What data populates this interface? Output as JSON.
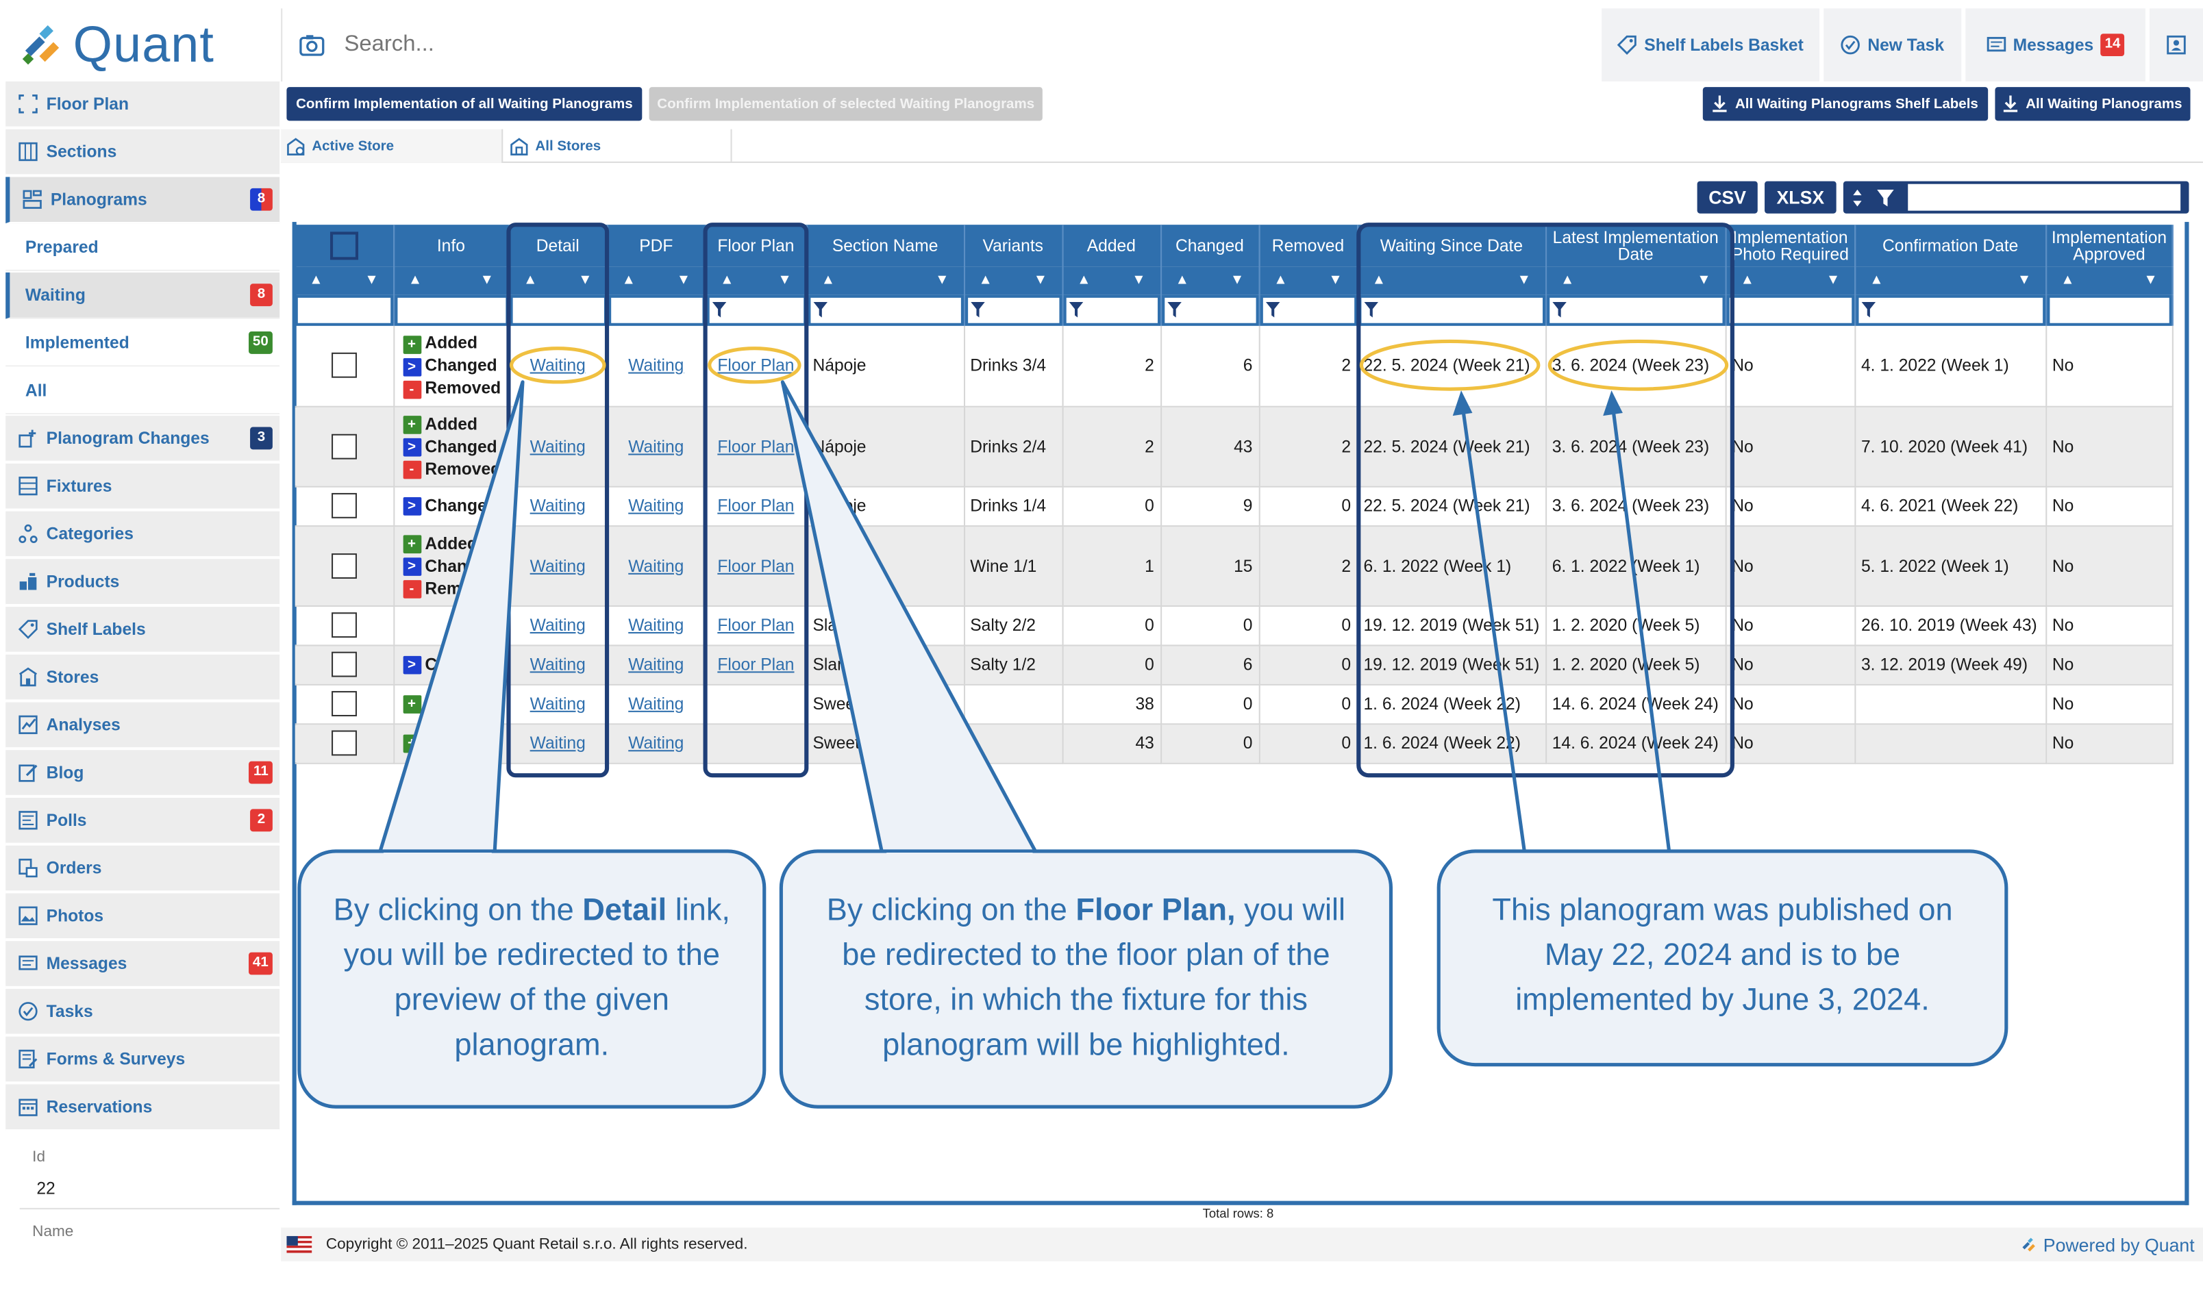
{
  "header": {
    "app_name": "Quant",
    "search_placeholder": "Search...",
    "buttons": [
      {
        "label": "Shelf Labels Basket",
        "icon": "tag-icon"
      },
      {
        "label": "New Task",
        "icon": "check-circle-icon"
      },
      {
        "label": "Messages",
        "icon": "messages-icon",
        "badge": "14"
      }
    ]
  },
  "sidebar": {
    "items": [
      {
        "label": "Floor Plan",
        "icon": "floor-plan-icon"
      },
      {
        "label": "Sections",
        "icon": "sections-icon"
      },
      {
        "label": "Planograms",
        "icon": "planograms-icon",
        "badge": "8"
      },
      {
        "label": "Prepared",
        "sub": true
      },
      {
        "label": "Waiting",
        "sub": true,
        "badge": "8"
      },
      {
        "label": "Implemented",
        "sub": true,
        "badge": "50"
      },
      {
        "label": "All",
        "sub": true
      },
      {
        "label": "Planogram Changes",
        "icon": "planogram-changes-icon",
        "badge": "3"
      },
      {
        "label": "Fixtures",
        "icon": "fixtures-icon"
      },
      {
        "label": "Categories",
        "icon": "categories-icon"
      },
      {
        "label": "Products",
        "icon": "products-icon"
      },
      {
        "label": "Shelf Labels",
        "icon": "tag-icon"
      },
      {
        "label": "Stores",
        "icon": "store-icon"
      },
      {
        "label": "Analyses",
        "icon": "analyses-icon"
      },
      {
        "label": "Blog",
        "icon": "blog-icon",
        "badge": "11"
      },
      {
        "label": "Polls",
        "icon": "polls-icon",
        "badge": "2"
      },
      {
        "label": "Orders",
        "icon": "orders-icon"
      },
      {
        "label": "Photos",
        "icon": "photos-icon"
      },
      {
        "label": "Messages",
        "icon": "messages-icon",
        "badge": "41"
      },
      {
        "label": "Tasks",
        "icon": "tasks-icon"
      },
      {
        "label": "Forms & Surveys",
        "icon": "forms-icon"
      },
      {
        "label": "Reservations",
        "icon": "calendar-icon"
      }
    ],
    "props": [
      {
        "label": "Id",
        "value": "22"
      },
      {
        "label": "Name",
        "value": ""
      }
    ]
  },
  "toolbar": {
    "confirm_all": "Confirm Implementation of all Waiting Planograms",
    "confirm_selected": "Confirm Implementation of selected Waiting Planograms",
    "download_shelf_labels": "All Waiting Planograms Shelf Labels",
    "download_planograms": "All Waiting Planograms"
  },
  "tabs": [
    {
      "label": "Active Store",
      "icon": "active-store-icon"
    },
    {
      "label": "All Stores",
      "icon": "all-stores-icon"
    }
  ],
  "grid_tools": {
    "csv": "CSV",
    "xlsx": "XLSX",
    "filter_value": ""
  },
  "columns": [
    "",
    "Info",
    "Detail",
    "PDF",
    "Floor Plan",
    "Section Name",
    "Variants",
    "Added",
    "Changed",
    "Removed",
    "Waiting Since Date",
    "Latest Implementation Date",
    "Implementation Photo Required",
    "Confirmation Date",
    "Implementation Approved"
  ],
  "rows": [
    {
      "info": [
        "Added",
        "Changed",
        "Removed"
      ],
      "detail": "Waiting",
      "pdf": "Waiting",
      "floor_plan": "Floor Plan",
      "section": "Nápoje",
      "variant": "Drinks 3/4",
      "added": "2",
      "changed": "6",
      "removed": "2",
      "waiting_since": "22. 5. 2024 (Week 21)",
      "latest": "3. 6. 2024 (Week 23)",
      "photo": "No",
      "confirmation": "4. 1. 2022 (Week 1)",
      "approved": "No"
    },
    {
      "info": [
        "Added",
        "Changed",
        "Removed"
      ],
      "detail": "Waiting",
      "pdf": "Waiting",
      "floor_plan": "Floor Plan",
      "section": "Nápoje",
      "variant": "Drinks 2/4",
      "added": "2",
      "changed": "43",
      "removed": "2",
      "waiting_since": "22. 5. 2024 (Week 21)",
      "latest": "3. 6. 2024 (Week 23)",
      "photo": "No",
      "confirmation": "7. 10. 2020 (Week 41)",
      "approved": "No"
    },
    {
      "info": [
        "Changed"
      ],
      "detail": "Waiting",
      "pdf": "Waiting",
      "floor_plan": "Floor Plan",
      "section": "Nápoje",
      "variant": "Drinks 1/4",
      "added": "0",
      "changed": "9",
      "removed": "0",
      "waiting_since": "22. 5. 2024 (Week 21)",
      "latest": "3. 6. 2024 (Week 23)",
      "photo": "No",
      "confirmation": "4. 6. 2021 (Week 22)",
      "approved": "No"
    },
    {
      "info": [
        "Added",
        "Changed",
        "Removed"
      ],
      "detail": "Waiting",
      "pdf": "Waiting",
      "floor_plan": "Floor Plan",
      "section": "",
      "variant": "Wine 1/1",
      "added": "1",
      "changed": "15",
      "removed": "2",
      "waiting_since": "6. 1. 2022 (Week 1)",
      "latest": "6. 1. 2022 (Week 1)",
      "photo": "No",
      "confirmation": "5. 1. 2022 (Week 1)",
      "approved": "No"
    },
    {
      "info": [],
      "detail": "Waiting",
      "pdf": "Waiting",
      "floor_plan": "Floor Plan",
      "section": "Slané",
      "variant": "Salty 2/2",
      "added": "0",
      "changed": "0",
      "removed": "0",
      "waiting_since": "19. 12. 2019 (Week 51)",
      "latest": "1. 2. 2020 (Week 5)",
      "photo": "No",
      "confirmation": "26. 10. 2019 (Week 43)",
      "approved": "No"
    },
    {
      "info": [
        "Changed"
      ],
      "detail": "Waiting",
      "pdf": "Waiting",
      "floor_plan": "Floor Plan",
      "section": "Slané",
      "variant": "Salty 1/2",
      "added": "0",
      "changed": "6",
      "removed": "0",
      "waiting_since": "19. 12. 2019 (Week 51)",
      "latest": "1. 2. 2020 (Week 5)",
      "photo": "No",
      "confirmation": "3. 12. 2019 (Week 49)",
      "approved": "No"
    },
    {
      "info": [
        "Added"
      ],
      "detail": "Waiting",
      "pdf": "Waiting",
      "floor_plan": "",
      "section": "Sweets",
      "variant": "",
      "added": "38",
      "changed": "0",
      "removed": "0",
      "waiting_since": "1. 6. 2024 (Week 22)",
      "latest": "14. 6. 2024 (Week 24)",
      "photo": "No",
      "confirmation": "",
      "approved": "No"
    },
    {
      "info": [
        "Added"
      ],
      "detail": "Waiting",
      "pdf": "Waiting",
      "floor_plan": "",
      "section": "Sweets",
      "variant": "",
      "added": "43",
      "changed": "0",
      "removed": "0",
      "waiting_since": "1. 6. 2024 (Week 22)",
      "latest": "14. 6. 2024 (Week 24)",
      "photo": "No",
      "confirmation": "",
      "approved": "No"
    }
  ],
  "total_rows": "Total rows: 8",
  "callouts": [
    {
      "pre": "By clicking on the ",
      "bold": "Detail",
      "post": " link, you will be redirected to the preview of the given planogram."
    },
    {
      "pre": "By clicking on the ",
      "bold": "Floor Plan,",
      "post": " you will be redirected to the floor plan of the store, in which the fixture for this planogram will be highlighted."
    },
    {
      "pre": "",
      "bold": "",
      "post": "This planogram was published on May 22, 2024 and is to be implemented by June 3, 2024."
    }
  ],
  "footer": {
    "copyright": "Copyright © 2011–2025 Quant Retail s.r.o. All rights reserved.",
    "powered": "Powered by Quant"
  },
  "colors": {
    "brand": "#2f6fad",
    "navy": "#1f3f78",
    "badge_red": "#e53935",
    "badge_green": "#3a8c2f",
    "highlight": "#f0c040"
  }
}
